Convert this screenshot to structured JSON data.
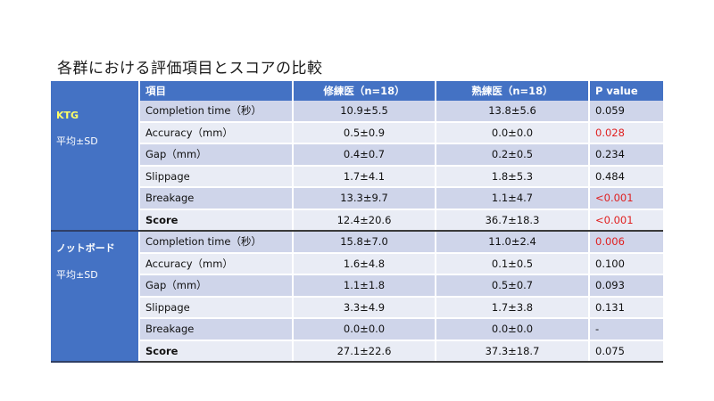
{
  "title": "各群における評価項目とスコアの比較",
  "columns": [
    "",
    "項目",
    "修練医（n=18）",
    "熟練医（n=18）",
    "P value"
  ],
  "groups": [
    {
      "name": "KTG",
      "subtitle": "平均±SD",
      "rows": [
        {
          "item": "Completion time（秒）",
          "trainee": "10.9±5.5",
          "expert": "13.8±5.6",
          "p": "0.059",
          "significant": false,
          "bold": false
        },
        {
          "item": "Accuracy（mm）",
          "trainee": "0.5±0.9",
          "expert": "0.0±0.0",
          "p": "0.028",
          "significant": true,
          "bold": false
        },
        {
          "item": "Gap（mm）",
          "trainee": "0.4±0.7",
          "expert": "0.2±0.5",
          "p": "0.234",
          "significant": false,
          "bold": false
        },
        {
          "item": "Slippage",
          "trainee": "1.7±4.1",
          "expert": "1.8±5.3",
          "p": "0.484",
          "significant": false,
          "bold": false
        },
        {
          "item": "Breakage",
          "trainee": "13.3±9.7",
          "expert": "1.1±4.7",
          "p": "<0.001",
          "significant": true,
          "bold": false
        },
        {
          "item": "Score",
          "trainee": "12.4±20.6",
          "expert": "36.7±18.3",
          "p": "<0.001",
          "significant": true,
          "bold": true
        }
      ]
    },
    {
      "name": "ノットボード",
      "subtitle": "平均±SD",
      "rows": [
        {
          "item": "Completion time（秒）",
          "trainee": "15.8±7.0",
          "expert": "11.0±2.4",
          "p": "0.006",
          "significant": true,
          "bold": false
        },
        {
          "item": "Accuracy（mm）",
          "trainee": "1.6±4.8",
          "expert": "0.1±0.5",
          "p": "0.100",
          "significant": false,
          "bold": false
        },
        {
          "item": "Gap（mm）",
          "trainee": "1.1±1.8",
          "expert": "0.5±0.7",
          "p": "0.093",
          "significant": false,
          "bold": false
        },
        {
          "item": "Slippage",
          "trainee": "3.3±4.9",
          "expert": "1.7±3.8",
          "p": "0.131",
          "significant": false,
          "bold": false
        },
        {
          "item": "Breakage",
          "trainee": "0.0±0.0",
          "expert": "0.0±0.0",
          "p": "-",
          "significant": false,
          "bold": false
        },
        {
          "item": "Score",
          "trainee": "27.1±22.6",
          "expert": "37.3±18.7",
          "p": "0.075",
          "significant": false,
          "bold": true
        }
      ]
    }
  ],
  "colors": {
    "header": "#4472c4",
    "row_dark": "#cfd5ea",
    "row_light": "#e9ecf5",
    "significant": "#e02020",
    "group_label": "#ffff66"
  }
}
